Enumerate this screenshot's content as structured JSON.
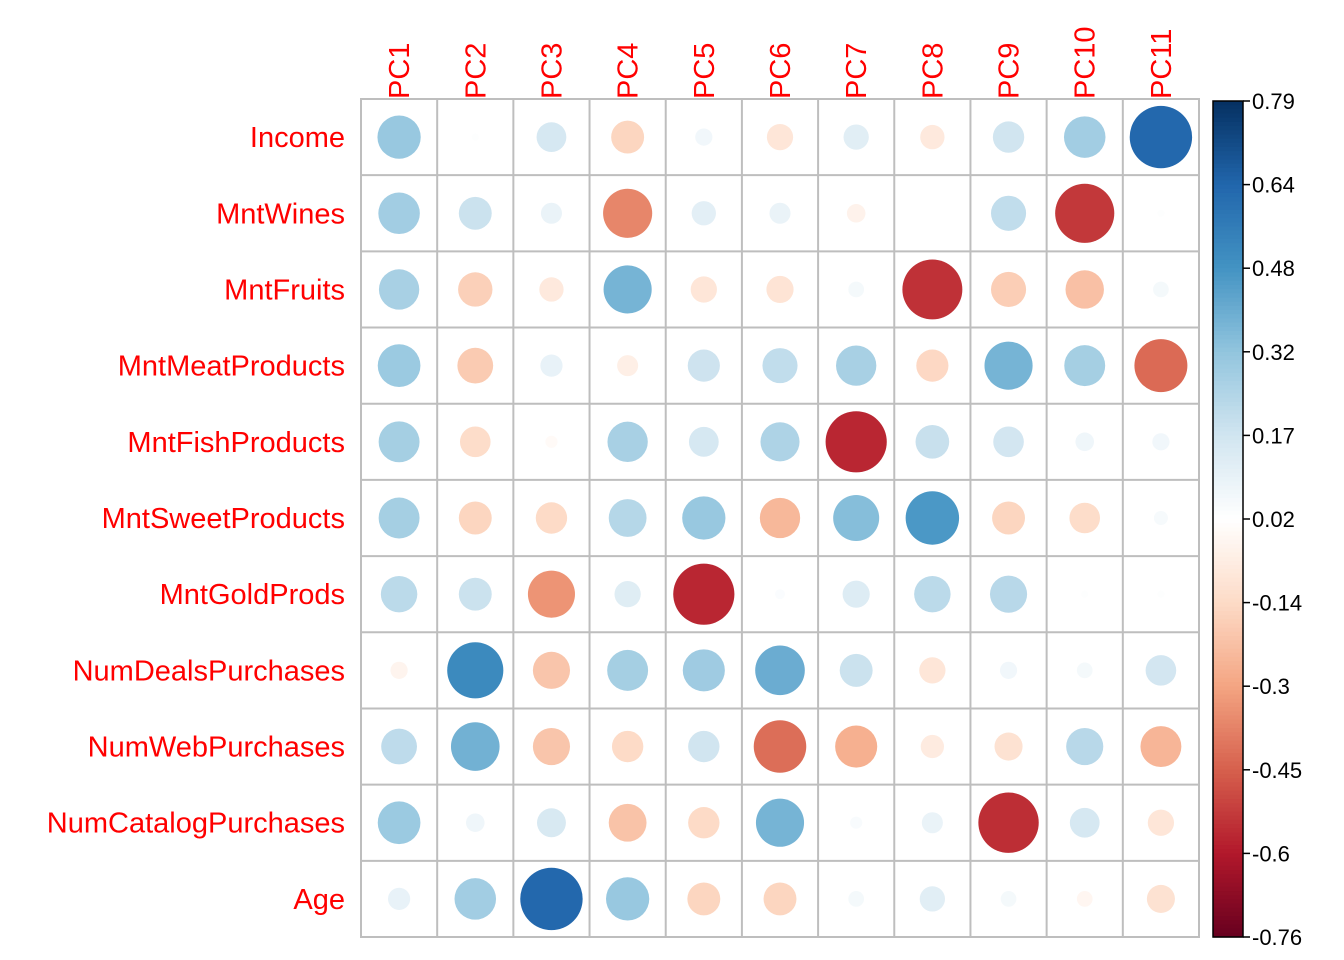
{
  "chart_data": {
    "type": "heatmap",
    "style": "circle-correlation-matrix",
    "columns": [
      "PC1",
      "PC2",
      "PC3",
      "PC4",
      "PC5",
      "PC6",
      "PC7",
      "PC8",
      "PC9",
      "PC10",
      "PC11"
    ],
    "rows": [
      "Income",
      "MntWines",
      "MntFruits",
      "MntMeatProducts",
      "MntFishProducts",
      "MntSweetProducts",
      "MntGoldProds",
      "NumDealsPurchases",
      "NumWebPurchases",
      "NumCatalogPurchases",
      "Age"
    ],
    "values": [
      [
        0.38,
        0.01,
        0.18,
        -0.22,
        0.06,
        -0.14,
        0.13,
        -0.12,
        0.2,
        0.35,
        0.79
      ],
      [
        0.35,
        0.22,
        0.09,
        -0.49,
        0.12,
        0.09,
        -0.07,
        0.0,
        0.25,
        -0.71,
        0.01
      ],
      [
        0.33,
        -0.24,
        -0.12,
        0.47,
        -0.14,
        -0.15,
        0.05,
        -0.73,
        -0.25,
        -0.3,
        0.05
      ],
      [
        0.37,
        -0.26,
        0.1,
        -0.09,
        0.21,
        0.25,
        0.33,
        -0.21,
        0.47,
        0.34,
        -0.57
      ],
      [
        0.34,
        -0.19,
        -0.03,
        0.33,
        0.18,
        0.31,
        -0.76,
        0.23,
        0.19,
        0.07,
        0.06
      ],
      [
        0.34,
        -0.22,
        -0.2,
        0.29,
        0.38,
        -0.33,
        0.43,
        0.58,
        -0.22,
        -0.19,
        0.04
      ],
      [
        0.27,
        0.22,
        -0.45,
        0.14,
        -0.76,
        0.02,
        0.15,
        0.27,
        0.28,
        0.01,
        0.01
      ],
      [
        -0.06,
        0.64,
        -0.28,
        0.34,
        0.36,
        0.5,
        0.22,
        -0.14,
        0.06,
        0.05,
        0.19
      ],
      [
        0.26,
        0.48,
        -0.28,
        -0.2,
        0.2,
        -0.56,
        -0.36,
        -0.11,
        -0.16,
        0.28,
        -0.34
      ],
      [
        0.37,
        0.07,
        0.17,
        -0.29,
        -0.2,
        0.47,
        0.03,
        0.09,
        -0.74,
        0.18,
        -0.14
      ],
      [
        0.1,
        0.35,
        0.79,
        0.38,
        -0.22,
        -0.22,
        0.05,
        0.13,
        0.05,
        -0.05,
        -0.16
      ]
    ],
    "legend": {
      "position": "right",
      "min": -0.76,
      "max": 0.79,
      "tick_labels": [
        "0.79",
        "0.64",
        "0.48",
        "0.32",
        "0.17",
        "0.02",
        "-0.14",
        "-0.3",
        "-0.45",
        "-0.6",
        "-0.76"
      ]
    },
    "colors": {
      "label": "#ff0000",
      "grid": "#bebebe",
      "negative": "#67001f",
      "neutral": "#ffffff",
      "positive": "#053061"
    }
  }
}
